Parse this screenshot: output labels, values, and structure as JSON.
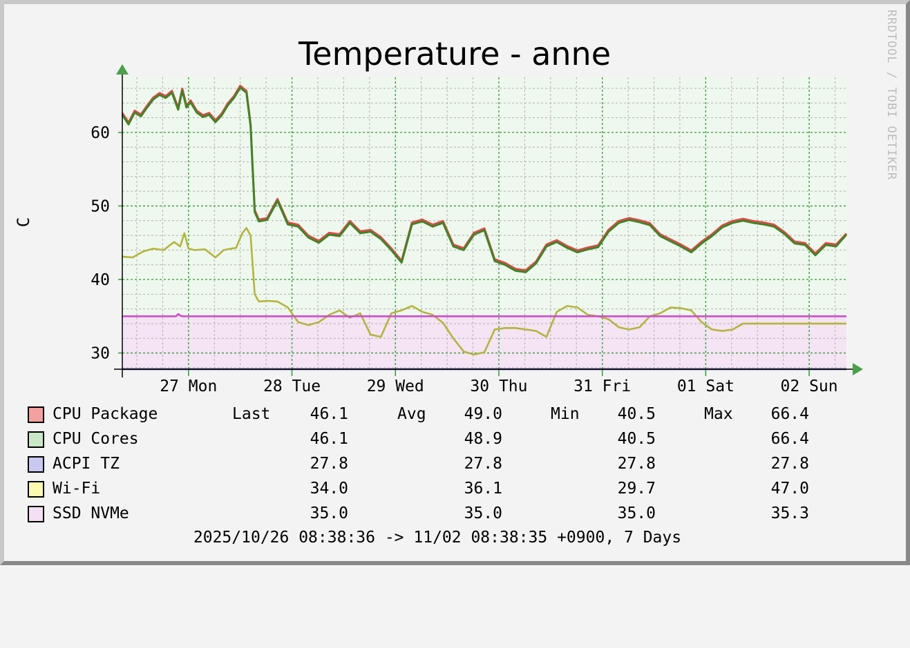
{
  "chart_data": {
    "type": "line",
    "title": "Temperature - anne",
    "ylabel": "C",
    "ylim": [
      27.8,
      67.5
    ],
    "yticks": [
      30,
      40,
      50,
      60
    ],
    "xlim": [
      "2025-10-26 08:38",
      "2025-11-02 08:38"
    ],
    "xticks": [
      {
        "label": "27 Mon",
        "day": 0.64
      },
      {
        "label": "28 Tue",
        "day": 1.64
      },
      {
        "label": "29 Wed",
        "day": 2.64
      },
      {
        "label": "30 Thu",
        "day": 3.64
      },
      {
        "label": "31 Fri",
        "day": 4.64
      },
      {
        "label": "01 Sat",
        "day": 5.64
      },
      {
        "label": "02 Sun",
        "day": 6.64
      }
    ],
    "grid": true,
    "series": [
      {
        "name": "CPU Package",
        "color": "#e04848",
        "x": [
          0,
          0.06,
          0.12,
          0.18,
          0.24,
          0.3,
          0.36,
          0.42,
          0.48,
          0.54,
          0.58,
          0.62,
          0.66,
          0.72,
          0.78,
          0.84,
          0.9,
          0.96,
          1.02,
          1.08,
          1.14,
          1.2,
          1.24,
          1.28,
          1.32,
          1.4,
          1.5,
          1.6,
          1.7,
          1.8,
          1.9,
          2.0,
          2.1,
          2.2,
          2.3,
          2.4,
          2.5,
          2.6,
          2.7,
          2.8,
          2.9,
          3.0,
          3.1,
          3.2,
          3.3,
          3.4,
          3.5,
          3.6,
          3.7,
          3.8,
          3.9,
          4.0,
          4.1,
          4.2,
          4.3,
          4.4,
          4.5,
          4.6,
          4.7,
          4.8,
          4.9,
          5.0,
          5.1,
          5.2,
          5.3,
          5.4,
          5.5,
          5.6,
          5.7,
          5.8,
          5.9,
          6.0,
          6.1,
          6.2,
          6.3,
          6.4,
          6.5,
          6.6,
          6.7,
          6.8,
          6.9,
          7.0
        ],
        "y": [
          62.5,
          61.2,
          62.8,
          62.3,
          63.5,
          64.6,
          65.2,
          64.8,
          65.5,
          63.2,
          65.8,
          63.5,
          64.2,
          62.8,
          62.2,
          62.5,
          61.5,
          62.4,
          63.8,
          64.8,
          66.2,
          65.5,
          61.0,
          49.3,
          48.0,
          48.2,
          50.8,
          47.6,
          47.3,
          45.8,
          45.1,
          46.2,
          46.0,
          47.8,
          46.4,
          46.6,
          45.6,
          44.1,
          42.4,
          47.6,
          48.0,
          47.3,
          47.8,
          44.6,
          44.1,
          46.2,
          46.8,
          42.6,
          42.1,
          41.3,
          41.1,
          42.3,
          44.6,
          45.2,
          44.4,
          43.8,
          44.2,
          44.5,
          46.6,
          47.8,
          48.2,
          47.9,
          47.5,
          46.0,
          45.3,
          44.6,
          43.8,
          45.0,
          46.0,
          47.2,
          47.8,
          48.1,
          47.8,
          47.6,
          47.3,
          46.3,
          45.0,
          44.8,
          43.4,
          44.8,
          44.6,
          46.1
        ]
      },
      {
        "name": "CPU Cores",
        "color": "#3f8428",
        "x": [
          0,
          0.06,
          0.12,
          0.18,
          0.24,
          0.3,
          0.36,
          0.42,
          0.48,
          0.54,
          0.58,
          0.62,
          0.66,
          0.72,
          0.78,
          0.84,
          0.9,
          0.96,
          1.02,
          1.08,
          1.14,
          1.2,
          1.24,
          1.28,
          1.32,
          1.4,
          1.5,
          1.6,
          1.7,
          1.8,
          1.9,
          2.0,
          2.1,
          2.2,
          2.3,
          2.4,
          2.5,
          2.6,
          2.7,
          2.8,
          2.9,
          3.0,
          3.1,
          3.2,
          3.3,
          3.4,
          3.5,
          3.6,
          3.7,
          3.8,
          3.9,
          4.0,
          4.1,
          4.2,
          4.3,
          4.4,
          4.5,
          4.6,
          4.7,
          4.8,
          4.9,
          5.0,
          5.1,
          5.2,
          5.3,
          5.4,
          5.5,
          5.6,
          5.7,
          5.8,
          5.9,
          6.0,
          6.1,
          6.2,
          6.3,
          6.4,
          6.5,
          6.6,
          6.7,
          6.8,
          6.9,
          7.0
        ],
        "y": [
          62.4,
          61.1,
          62.7,
          62.2,
          63.4,
          64.5,
          65.1,
          64.7,
          65.4,
          63.1,
          65.7,
          63.4,
          64.1,
          62.7,
          62.1,
          62.4,
          61.4,
          62.3,
          63.7,
          64.7,
          66.1,
          65.4,
          60.9,
          49.2,
          47.9,
          48.1,
          50.7,
          47.5,
          47.2,
          45.7,
          45.0,
          46.1,
          45.9,
          47.7,
          46.3,
          46.5,
          45.5,
          44.0,
          42.3,
          47.5,
          47.9,
          47.2,
          47.7,
          44.5,
          44.0,
          46.1,
          46.7,
          42.5,
          42.0,
          41.2,
          41.0,
          42.2,
          44.5,
          45.1,
          44.3,
          43.7,
          44.1,
          44.4,
          46.5,
          47.7,
          48.1,
          47.8,
          47.4,
          45.9,
          45.2,
          44.5,
          43.7,
          44.9,
          45.9,
          47.1,
          47.7,
          48.0,
          47.7,
          47.5,
          47.2,
          46.2,
          44.9,
          44.7,
          43.3,
          44.7,
          44.5,
          46.1
        ]
      },
      {
        "name": "ACPI TZ",
        "color": "#3c3c8c",
        "x": [
          0,
          7.0
        ],
        "y": [
          27.8,
          27.8
        ]
      },
      {
        "name": "Wi-Fi",
        "color": "#b4b43c",
        "x": [
          0,
          0.1,
          0.2,
          0.3,
          0.4,
          0.5,
          0.56,
          0.6,
          0.64,
          0.7,
          0.8,
          0.9,
          0.98,
          1.05,
          1.1,
          1.16,
          1.2,
          1.24,
          1.28,
          1.32,
          1.4,
          1.5,
          1.6,
          1.7,
          1.8,
          1.9,
          2.0,
          2.1,
          2.2,
          2.3,
          2.4,
          2.5,
          2.6,
          2.7,
          2.8,
          2.9,
          3.0,
          3.1,
          3.2,
          3.3,
          3.4,
          3.5,
          3.6,
          3.7,
          3.8,
          3.9,
          4.0,
          4.1,
          4.2,
          4.3,
          4.4,
          4.5,
          4.6,
          4.7,
          4.8,
          4.9,
          5.0,
          5.1,
          5.2,
          5.3,
          5.4,
          5.5,
          5.6,
          5.7,
          5.8,
          5.9,
          6.0,
          6.1,
          6.2,
          6.3,
          6.4,
          6.5,
          6.6,
          6.7,
          6.8,
          6.9,
          7.0
        ],
        "y": [
          43.1,
          43.0,
          43.8,
          44.2,
          44.0,
          45.1,
          44.5,
          46.3,
          44.2,
          44.0,
          44.1,
          43.0,
          44.0,
          44.2,
          44.3,
          46.3,
          47.0,
          46.0,
          38.0,
          37.0,
          37.1,
          37.0,
          36.2,
          34.2,
          33.8,
          34.2,
          35.2,
          35.8,
          34.8,
          35.4,
          32.5,
          32.2,
          35.4,
          35.8,
          36.4,
          35.6,
          35.2,
          34.1,
          32.0,
          30.2,
          29.8,
          30.1,
          33.2,
          33.4,
          33.4,
          33.2,
          33.0,
          32.2,
          35.6,
          36.4,
          36.2,
          35.2,
          35.0,
          34.6,
          33.5,
          33.2,
          33.5,
          35.0,
          35.4,
          36.2,
          36.1,
          35.8,
          34.2,
          33.2,
          33.0,
          33.2,
          34.0,
          34.0,
          34.0,
          34.0,
          34.0,
          34.0,
          34.0,
          34.0,
          34.0,
          34.0,
          34.0
        ]
      },
      {
        "name": "SSD NVMe",
        "color": "#d04ad0",
        "x": [
          0,
          0.52,
          0.54,
          0.56,
          0.58,
          7.0
        ],
        "y": [
          35.0,
          35.0,
          35.3,
          35.1,
          35.0,
          35.0
        ]
      }
    ]
  },
  "legend": [
    {
      "name": "CPU Package",
      "swatch": "#f4a0a0",
      "last": "46.1",
      "avg": "49.0",
      "min": "40.5",
      "max": "66.4"
    },
    {
      "name": "CPU Cores",
      "swatch": "#c8e8c8",
      "last": "46.1",
      "avg": "48.9",
      "min": "40.5",
      "max": "66.4"
    },
    {
      "name": "ACPI TZ",
      "swatch": "#c8c8f0",
      "last": "27.8",
      "avg": "27.8",
      "min": "27.8",
      "max": "27.8"
    },
    {
      "name": "Wi-Fi",
      "swatch": "#fafab0",
      "last": "34.0",
      "avg": "36.1",
      "min": "29.7",
      "max": "47.0"
    },
    {
      "name": "SSD NVMe",
      "swatch": "#f4e0f4",
      "last": "35.0",
      "avg": "35.0",
      "min": "35.0",
      "max": "35.3"
    }
  ],
  "legend_labels": {
    "last": "Last",
    "avg": "Avg",
    "min": "Min",
    "max": "Max"
  },
  "footer": "2025/10/26 08:38:36 -> 11/02 08:38:35 +0900, 7 Days",
  "watermark": "RRDTOOL / TOBI OETIKER"
}
